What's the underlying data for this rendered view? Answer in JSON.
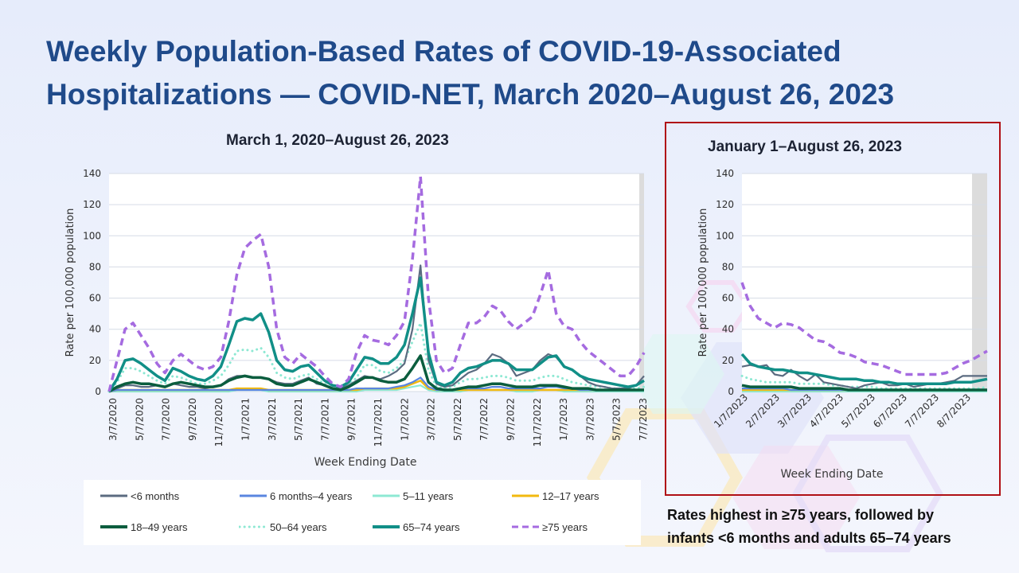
{
  "title": "Weekly Population-Based Rates of COVID-19-Associated Hospitalizations — COVID-NET, March 2020–August 26, 2023",
  "caption_line1": "Rates highest in ≥75 years, followed by",
  "caption_line2": "infants <6 months and adults 65–74 years",
  "colors": {
    "title": "#1f4a8a",
    "frame": "#b01016",
    "lt6m": "#5b6b80",
    "m6y4": "#5a86e0",
    "y5_11": "#8de8d3",
    "y12_17": "#f2b90f",
    "y18_49": "#0b5d3e",
    "y50_64": "#8de8d3",
    "y65_74": "#118f87",
    "y75": "#a56be0"
  },
  "legend": [
    {
      "key": "lt6m",
      "label": "<6 months",
      "style": "solid"
    },
    {
      "key": "m6y4",
      "label": "6 months–4 years",
      "style": "solid"
    },
    {
      "key": "y5_11",
      "label": "5–11 years",
      "style": "solid"
    },
    {
      "key": "y12_17",
      "label": "12–17 years",
      "style": "solid"
    },
    {
      "key": "y18_49",
      "label": "18–49 years",
      "style": "solid"
    },
    {
      "key": "y50_64",
      "label": "50–64 years",
      "style": "dotted"
    },
    {
      "key": "y65_74",
      "label": "65–74 years",
      "style": "solid"
    },
    {
      "key": "y75",
      "label": "≥75 years",
      "style": "dashed"
    }
  ],
  "chart_data": [
    {
      "type": "line",
      "title": "March 1, 2020–August 26, 2023",
      "xlabel": "Week Ending Date",
      "ylabel": "Rate per 100,000 population",
      "ylim": [
        0,
        140
      ],
      "yticks": [
        0,
        20,
        40,
        60,
        80,
        100,
        120,
        140
      ],
      "grid": true,
      "shaded_region": "last ~4 weeks (preliminary data)",
      "xticks": [
        "3/7/2020",
        "5/7/2020",
        "7/7/2020",
        "9/7/2020",
        "11/7/2020",
        "1/7/2021",
        "3/7/2021",
        "5/7/2021",
        "7/7/2021",
        "9/7/2021",
        "11/7/2021",
        "1/7/2022",
        "3/7/2022",
        "5/7/2022",
        "7/7/2022",
        "9/7/2022",
        "11/7/2022",
        "1/7/2023",
        "3/7/2023",
        "5/7/2023",
        "7/7/2023"
      ],
      "x_index_note": "series values sampled roughly every 2 weeks from 3/7/2020 to 8/26/2023",
      "series": [
        {
          "name": "≥75 years",
          "key": "y75",
          "values": [
            0,
            20,
            40,
            44,
            36,
            28,
            18,
            12,
            20,
            24,
            20,
            16,
            14,
            16,
            22,
            45,
            75,
            92,
            97,
            101,
            80,
            40,
            22,
            18,
            24,
            20,
            16,
            10,
            5,
            3,
            8,
            25,
            36,
            33,
            32,
            30,
            36,
            45,
            85,
            138,
            60,
            20,
            12,
            15,
            30,
            44,
            44,
            48,
            55,
            52,
            45,
            40,
            44,
            48,
            62,
            78,
            50,
            42,
            40,
            32,
            26,
            22,
            18,
            14,
            10,
            10,
            16,
            25
          ]
        },
        {
          "name": "65–74 years",
          "key": "y65_74",
          "values": [
            0,
            8,
            20,
            21,
            18,
            14,
            10,
            7,
            15,
            13,
            10,
            8,
            7,
            10,
            16,
            30,
            45,
            47,
            46,
            50,
            38,
            20,
            14,
            13,
            16,
            17,
            12,
            7,
            4,
            3,
            6,
            14,
            22,
            21,
            18,
            18,
            22,
            30,
            50,
            73,
            25,
            6,
            4,
            6,
            12,
            15,
            16,
            18,
            20,
            20,
            18,
            14,
            14,
            14,
            18,
            22,
            23,
            16,
            14,
            10,
            8,
            7,
            6,
            5,
            4,
            3,
            4,
            7
          ]
        },
        {
          "name": "50–64 years",
          "key": "y50_64",
          "values": [
            0,
            6,
            15,
            15,
            13,
            10,
            7,
            5,
            10,
            9,
            7,
            5,
            5,
            7,
            10,
            17,
            26,
            27,
            26,
            28,
            22,
            12,
            9,
            8,
            10,
            11,
            8,
            5,
            2,
            2,
            4,
            9,
            17,
            17,
            13,
            12,
            15,
            20,
            32,
            44,
            14,
            3,
            2,
            3,
            6,
            8,
            8,
            9,
            10,
            10,
            9,
            7,
            7,
            7,
            9,
            10,
            10,
            8,
            6,
            5,
            4,
            3,
            3,
            2,
            2,
            2,
            2,
            3
          ]
        },
        {
          "name": "18–49 years",
          "key": "y18_49",
          "values": [
            0,
            3,
            5,
            6,
            5,
            5,
            4,
            3,
            5,
            6,
            5,
            4,
            3,
            3,
            4,
            7,
            9,
            10,
            9,
            9,
            8,
            5,
            4,
            4,
            6,
            8,
            6,
            4,
            2,
            1,
            3,
            6,
            9,
            9,
            7,
            6,
            6,
            8,
            15,
            23,
            6,
            2,
            1,
            1,
            2,
            3,
            3,
            4,
            5,
            5,
            4,
            3,
            3,
            3,
            4,
            4,
            4,
            3,
            2,
            2,
            2,
            1,
            1,
            1,
            1,
            1,
            1,
            1
          ]
        },
        {
          "name": "<6 months",
          "key": "lt6m",
          "values": [
            0,
            2,
            4,
            4,
            3,
            3,
            4,
            3,
            5,
            4,
            3,
            3,
            2,
            3,
            4,
            8,
            10,
            10,
            9,
            9,
            8,
            6,
            5,
            5,
            7,
            9,
            5,
            4,
            2,
            2,
            4,
            7,
            10,
            9,
            8,
            10,
            13,
            18,
            40,
            81,
            20,
            5,
            3,
            4,
            8,
            12,
            14,
            18,
            24,
            22,
            18,
            10,
            12,
            14,
            20,
            24,
            22,
            16,
            14,
            10,
            6,
            4,
            3,
            2,
            2,
            2,
            4,
            10
          ]
        },
        {
          "name": "6 months–4 years",
          "key": "m6y4",
          "values": [
            0,
            1,
            1,
            1,
            1,
            1,
            1,
            1,
            1,
            1,
            1,
            1,
            1,
            1,
            1,
            1,
            1,
            1,
            1,
            1,
            1,
            1,
            1,
            1,
            1,
            1,
            1,
            1,
            1,
            1,
            1,
            2,
            2,
            2,
            2,
            2,
            3,
            4,
            6,
            9,
            3,
            1,
            1,
            1,
            2,
            2,
            2,
            2,
            3,
            3,
            2,
            2,
            2,
            2,
            2,
            3,
            3,
            2,
            2,
            1,
            1,
            1,
            1,
            1,
            1,
            1,
            1,
            1
          ]
        },
        {
          "name": "12–17 years",
          "key": "y12_17",
          "values": [
            0,
            1,
            1,
            1,
            1,
            1,
            1,
            1,
            1,
            1,
            1,
            1,
            1,
            1,
            1,
            1,
            2,
            2,
            2,
            2,
            1,
            1,
            1,
            1,
            1,
            1,
            1,
            1,
            1,
            1,
            1,
            1,
            2,
            2,
            2,
            2,
            2,
            3,
            5,
            7,
            2,
            1,
            1,
            1,
            1,
            1,
            1,
            1,
            1,
            1,
            1,
            1,
            1,
            1,
            1,
            1,
            1,
            1,
            1,
            1,
            1,
            1,
            1,
            1,
            1,
            1,
            1,
            1
          ]
        },
        {
          "name": "5–11 years",
          "key": "y5_11",
          "values": [
            0,
            0,
            0,
            0,
            0,
            0,
            0,
            0,
            0,
            0,
            0,
            0,
            0,
            0,
            0,
            0,
            1,
            1,
            1,
            1,
            0,
            0,
            0,
            0,
            0,
            0,
            0,
            0,
            0,
            0,
            0,
            0,
            1,
            1,
            1,
            1,
            1,
            2,
            3,
            4,
            1,
            0,
            0,
            0,
            0,
            1,
            1,
            1,
            1,
            1,
            1,
            0,
            0,
            0,
            1,
            1,
            1,
            0,
            0,
            0,
            0,
            0,
            0,
            0,
            0,
            0,
            0,
            0
          ]
        }
      ]
    },
    {
      "type": "line",
      "title": "January 1–August 26, 2023",
      "xlabel": "Week Ending Date",
      "ylabel": "Rate per 100,000 population",
      "ylim": [
        0,
        140
      ],
      "yticks": [
        0,
        20,
        40,
        60,
        80,
        100,
        120,
        140
      ],
      "grid": true,
      "shaded_region": "last ~4 weeks (preliminary data)",
      "xticks": [
        "1/7/2023",
        "2/7/2023",
        "3/7/2023",
        "4/7/2023",
        "5/7/2023",
        "6/7/2023",
        "7/7/2023",
        "8/7/2023"
      ],
      "series": [
        {
          "name": "≥75 years",
          "key": "y75",
          "values": [
            70,
            55,
            47,
            44,
            41,
            44,
            43,
            41,
            37,
            33,
            32,
            29,
            25,
            24,
            22,
            19,
            18,
            17,
            15,
            13,
            11,
            11,
            11,
            11,
            11,
            12,
            15,
            18,
            20,
            23,
            26
          ]
        },
        {
          "name": "65–74 years",
          "key": "y65_74",
          "values": [
            24,
            18,
            16,
            15,
            14,
            14,
            13,
            12,
            12,
            11,
            10,
            9,
            8,
            8,
            8,
            7,
            7,
            6,
            6,
            5,
            5,
            5,
            5,
            5,
            5,
            5,
            6,
            6,
            6,
            7,
            8
          ]
        },
        {
          "name": "<6 months",
          "key": "lt6m",
          "values": [
            16,
            17,
            16,
            17,
            11,
            10,
            14,
            10,
            7,
            11,
            6,
            5,
            4,
            3,
            2,
            4,
            5,
            6,
            4,
            4,
            5,
            3,
            4,
            5,
            5,
            6,
            7,
            10,
            10,
            10,
            10
          ]
        },
        {
          "name": "50–64 years",
          "key": "y50_64",
          "values": [
            10,
            8,
            7,
            6,
            6,
            6,
            6,
            5,
            5,
            5,
            5,
            4,
            4,
            3,
            3,
            3,
            3,
            2,
            2,
            2,
            2,
            2,
            2,
            2,
            2,
            2,
            2,
            2,
            2,
            2,
            3
          ]
        },
        {
          "name": "18–49 years",
          "key": "y18_49",
          "values": [
            4,
            3,
            3,
            3,
            3,
            3,
            3,
            2,
            2,
            2,
            2,
            2,
            2,
            1,
            1,
            1,
            1,
            1,
            1,
            1,
            1,
            1,
            1,
            1,
            1,
            1,
            1,
            1,
            1,
            1,
            1
          ]
        },
        {
          "name": "6 months–4 years",
          "key": "m6y4",
          "values": [
            2,
            2,
            2,
            2,
            2,
            2,
            1,
            1,
            1,
            1,
            1,
            1,
            1,
            1,
            1,
            1,
            1,
            1,
            1,
            1,
            1,
            1,
            1,
            1,
            1,
            1,
            1,
            1,
            1,
            1,
            1
          ]
        },
        {
          "name": "12–17 years",
          "key": "y12_17",
          "values": [
            1,
            1,
            1,
            1,
            1,
            1,
            1,
            1,
            1,
            1,
            1,
            1,
            1,
            1,
            1,
            1,
            1,
            1,
            1,
            1,
            1,
            1,
            1,
            1,
            1,
            1,
            1,
            1,
            1,
            1,
            1
          ]
        },
        {
          "name": "5–11 years",
          "key": "y5_11",
          "values": [
            0,
            0,
            0,
            0,
            0,
            0,
            0,
            0,
            0,
            0,
            0,
            0,
            0,
            0,
            0,
            0,
            0,
            0,
            0,
            0,
            0,
            0,
            0,
            0,
            0,
            0,
            0,
            0,
            0,
            0,
            0
          ]
        }
      ]
    }
  ]
}
